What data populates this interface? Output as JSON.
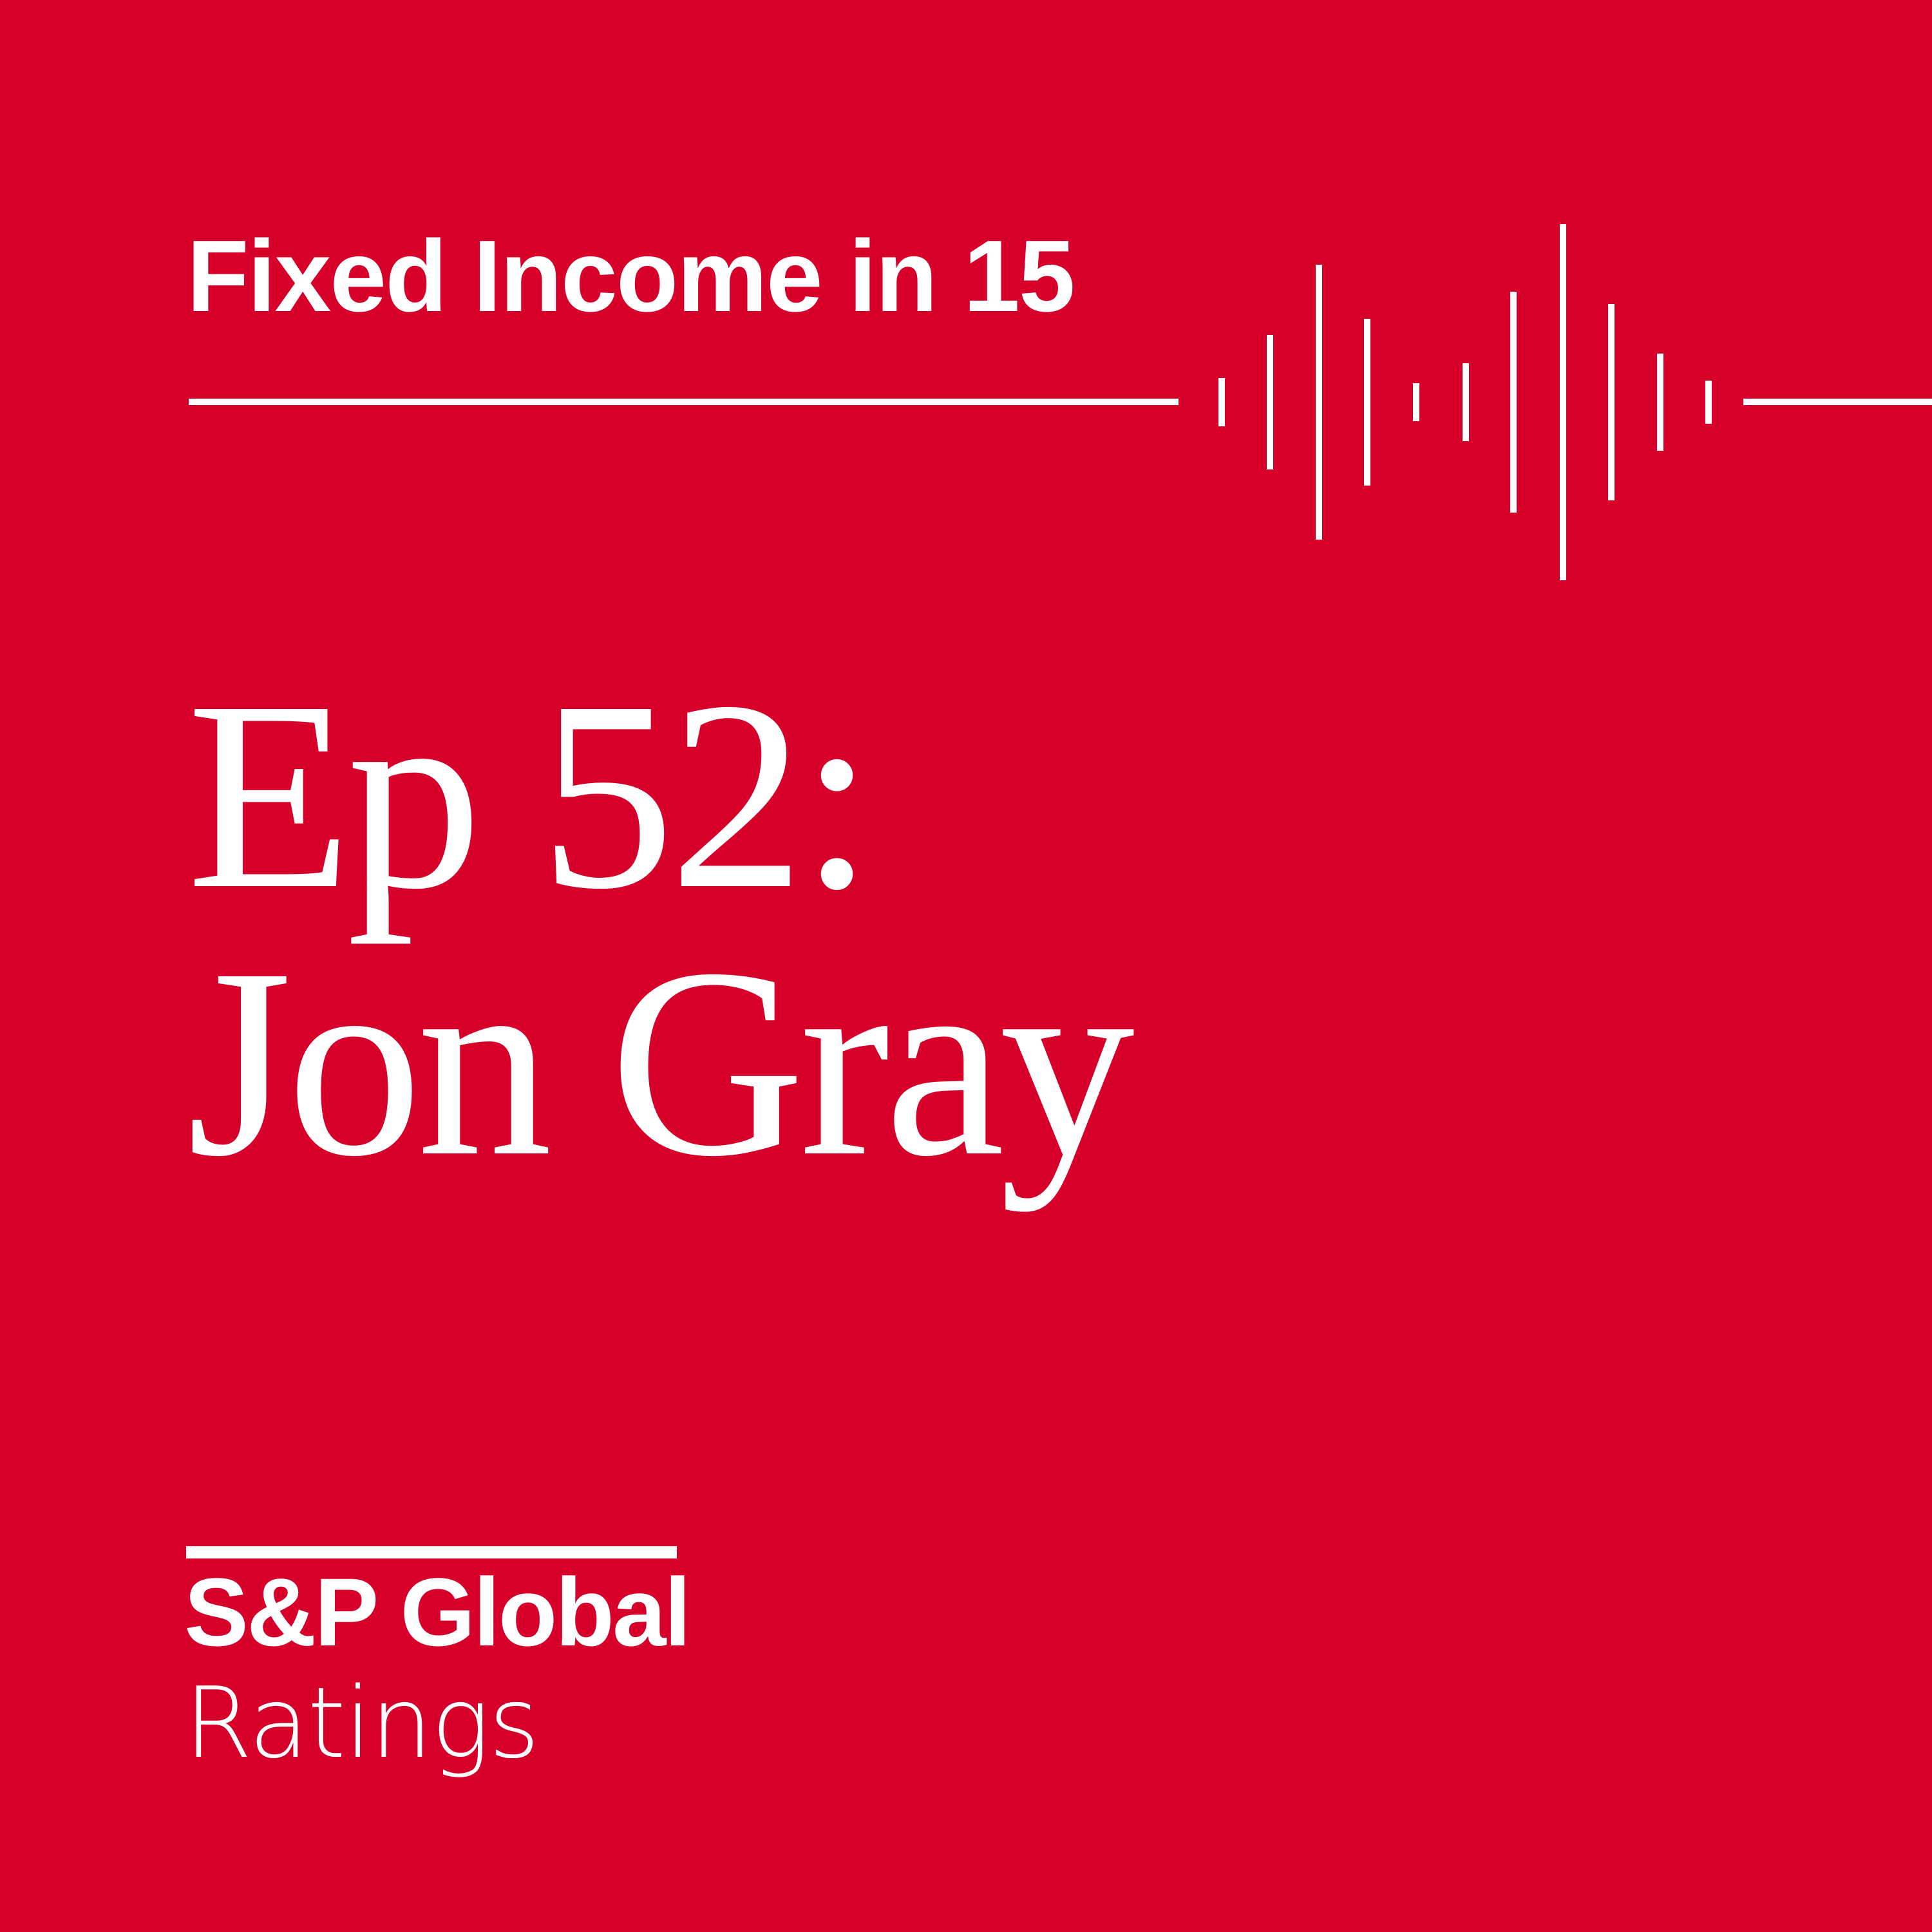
{
  "colors": {
    "background": "#D6002A",
    "foreground": "#FFFFFF"
  },
  "header": {
    "show_title": "Fixed Income in 15",
    "waveform_icon": "audio-waveform-icon"
  },
  "episode": {
    "line1": "Ep 52:",
    "line2": "Jon Gray"
  },
  "brand": {
    "name": "S&P Global",
    "sub": "Ratings"
  }
}
